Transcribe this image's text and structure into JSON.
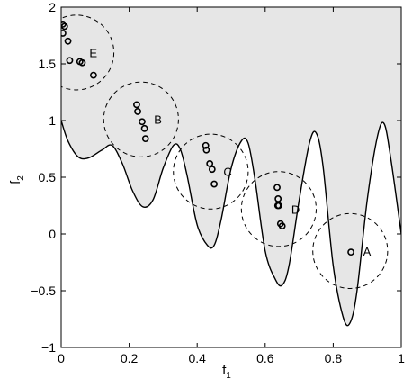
{
  "chart_data": {
    "type": "line",
    "xlabel": "f",
    "xlabel_sub": "1",
    "ylabel": "f",
    "ylabel_sub": "2",
    "xlim": [
      0,
      1
    ],
    "ylim": [
      -1,
      2
    ],
    "x_ticks": [
      0,
      0.2,
      0.4,
      0.6,
      0.8,
      1
    ],
    "x_tick_labels": [
      "0",
      "0.2",
      "0.4",
      "0.6",
      "0.8",
      "1"
    ],
    "y_ticks": [
      -1,
      -0.5,
      0,
      0.5,
      1,
      1.5,
      2
    ],
    "y_tick_labels": [
      "−1",
      "−0.5",
      "0",
      "0.5",
      "1",
      "1.5",
      "2"
    ],
    "grid": false,
    "legend": "none",
    "colors": {
      "feasible_fill": "#e6e6e6",
      "boundary": "#000000",
      "points": "#000000",
      "circles": "#000000"
    },
    "boundary_curve": {
      "x": [
        0,
        0.02,
        0.05,
        0.08,
        0.12,
        0.15,
        0.18,
        0.21,
        0.24,
        0.27,
        0.3,
        0.33,
        0.35,
        0.37,
        0.4,
        0.43,
        0.45,
        0.47,
        0.5,
        0.53,
        0.55,
        0.57,
        0.6,
        0.63,
        0.65,
        0.67,
        0.7,
        0.73,
        0.75,
        0.77,
        0.8,
        0.83,
        0.85,
        0.87,
        0.9,
        0.93,
        0.95,
        0.97,
        1.0
      ],
      "y": [
        1.0,
        0.82,
        0.68,
        0.67,
        0.74,
        0.78,
        0.62,
        0.38,
        0.24,
        0.3,
        0.58,
        0.78,
        0.75,
        0.52,
        0.08,
        -0.1,
        -0.1,
        0.12,
        0.58,
        0.82,
        0.8,
        0.48,
        -0.15,
        -0.4,
        -0.45,
        -0.28,
        0.3,
        0.8,
        0.89,
        0.6,
        -0.28,
        -0.74,
        -0.78,
        -0.5,
        0.3,
        0.86,
        0.97,
        0.65,
        0.0
      ]
    },
    "clusters": [
      {
        "label": "A",
        "center": [
          0.85,
          -0.15
        ],
        "radius": 0.11,
        "points": [
          [
            0.852,
            -0.16
          ]
        ]
      },
      {
        "label": "B",
        "center": [
          0.235,
          1.01
        ],
        "radius": 0.11,
        "points": [
          [
            0.222,
            1.14
          ],
          [
            0.225,
            1.08
          ],
          [
            0.238,
            0.99
          ],
          [
            0.245,
            0.93
          ],
          [
            0.248,
            0.84
          ]
        ]
      },
      {
        "label": "C",
        "center": [
          0.44,
          0.55
        ],
        "radius": 0.11,
        "points": [
          [
            0.425,
            0.78
          ],
          [
            0.427,
            0.74
          ],
          [
            0.437,
            0.62
          ],
          [
            0.444,
            0.57
          ],
          [
            0.45,
            0.44
          ]
        ]
      },
      {
        "label": "D",
        "center": [
          0.64,
          0.22
        ],
        "radius": 0.11,
        "points": [
          [
            0.635,
            0.41
          ],
          [
            0.638,
            0.31
          ],
          [
            0.637,
            0.25
          ],
          [
            0.64,
            0.25
          ],
          [
            0.645,
            0.09
          ],
          [
            0.65,
            0.07
          ]
        ]
      },
      {
        "label": "E",
        "center": [
          0.045,
          1.6
        ],
        "radius": 0.11,
        "points": [
          [
            0.005,
            1.85
          ],
          [
            0.01,
            1.83
          ],
          [
            0.005,
            1.77
          ],
          [
            0.02,
            1.7
          ],
          [
            0.025,
            1.53
          ],
          [
            0.055,
            1.52
          ],
          [
            0.062,
            1.51
          ],
          [
            0.095,
            1.4
          ]
        ]
      }
    ]
  }
}
